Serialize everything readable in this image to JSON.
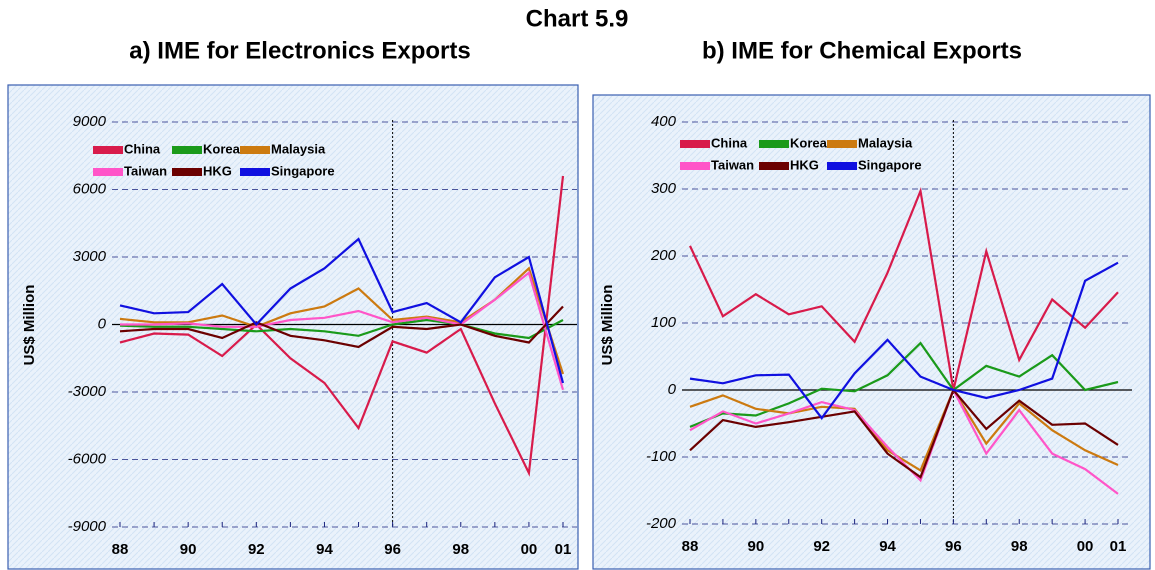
{
  "title": "Chart 5.9",
  "chart_data": [
    {
      "type": "line",
      "title": "a) IME for Electronics Exports",
      "y_label": "US$ Million",
      "categories": [
        "88",
        null,
        "90",
        null,
        "92",
        null,
        "94",
        null,
        "96",
        null,
        "98",
        null,
        "00",
        "01"
      ],
      "series": [
        {
          "name": "China",
          "color": "#d81b4b",
          "values": [
            -800,
            -400,
            -450,
            -1400,
            0,
            -1500,
            -2600,
            -4600,
            -750,
            -1250,
            -200,
            -3500,
            -6600,
            6600
          ]
        },
        {
          "name": "Korea",
          "color": "#1a9a1a",
          "values": [
            -50,
            -100,
            -100,
            -200,
            -300,
            -200,
            -300,
            -500,
            0,
            200,
            0,
            -400,
            -600,
            200
          ]
        },
        {
          "name": "Malaysia",
          "color": "#cc7a10",
          "values": [
            250,
            100,
            100,
            400,
            -100,
            500,
            800,
            1600,
            200,
            350,
            100,
            1100,
            2500,
            -2200
          ]
        },
        {
          "name": "Taiwan",
          "color": "#ff55c8",
          "values": [
            0,
            0,
            50,
            -100,
            -100,
            200,
            300,
            600,
            100,
            300,
            0,
            1100,
            2300,
            -2900
          ]
        },
        {
          "name": "HKG",
          "color": "#6b0000",
          "values": [
            -300,
            -200,
            -200,
            -600,
            100,
            -500,
            -700,
            -1000,
            -100,
            -200,
            0,
            -500,
            -800,
            800
          ]
        },
        {
          "name": "Singapore",
          "color": "#1010e0",
          "values": [
            850,
            500,
            550,
            1800,
            0,
            1600,
            2500,
            3800,
            550,
            950,
            100,
            2100,
            3000,
            -2600
          ]
        }
      ],
      "ylim": [
        -9000,
        9000
      ],
      "yticks": [
        -9000,
        -6000,
        -3000,
        0,
        3000,
        6000,
        9000
      ],
      "grid": true,
      "legend": "top-left"
    },
    {
      "type": "line",
      "title": "b) IME for Chemical Exports",
      "y_label": "US$ Million",
      "categories": [
        "88",
        null,
        "90",
        null,
        "92",
        null,
        "94",
        null,
        "96",
        null,
        "98",
        null,
        "00",
        "01"
      ],
      "series": [
        {
          "name": "China",
          "color": "#d81b4b",
          "values": [
            215,
            110,
            143,
            113,
            125,
            72,
            175,
            297,
            0,
            207,
            45,
            135,
            93,
            146
          ]
        },
        {
          "name": "Korea",
          "color": "#1a9a1a",
          "values": [
            -55,
            -35,
            -38,
            -20,
            2,
            -2,
            22,
            70,
            0,
            36,
            20,
            52,
            0,
            12
          ]
        },
        {
          "name": "Malaysia",
          "color": "#cc7a10",
          "values": [
            -25,
            -8,
            -28,
            -35,
            -25,
            -28,
            -90,
            -120,
            0,
            -80,
            -20,
            -60,
            -90,
            -112
          ]
        },
        {
          "name": "Taiwan",
          "color": "#ff55c8",
          "values": [
            -60,
            -32,
            -50,
            -35,
            -18,
            -30,
            -85,
            -135,
            0,
            -95,
            -30,
            -95,
            -118,
            -155
          ]
        },
        {
          "name": "HKG",
          "color": "#6b0000",
          "values": [
            -90,
            -45,
            -55,
            -48,
            -40,
            -32,
            -95,
            -130,
            0,
            -58,
            -16,
            -52,
            -50,
            -82
          ]
        },
        {
          "name": "Singapore",
          "color": "#1010e0",
          "values": [
            17,
            10,
            22,
            23,
            -42,
            25,
            75,
            20,
            0,
            -12,
            0,
            17,
            163,
            190
          ]
        }
      ],
      "ylim": [
        -200,
        400
      ],
      "yticks": [
        -200,
        -100,
        0,
        100,
        200,
        300,
        400
      ],
      "grid": true,
      "legend": "top-left"
    }
  ]
}
